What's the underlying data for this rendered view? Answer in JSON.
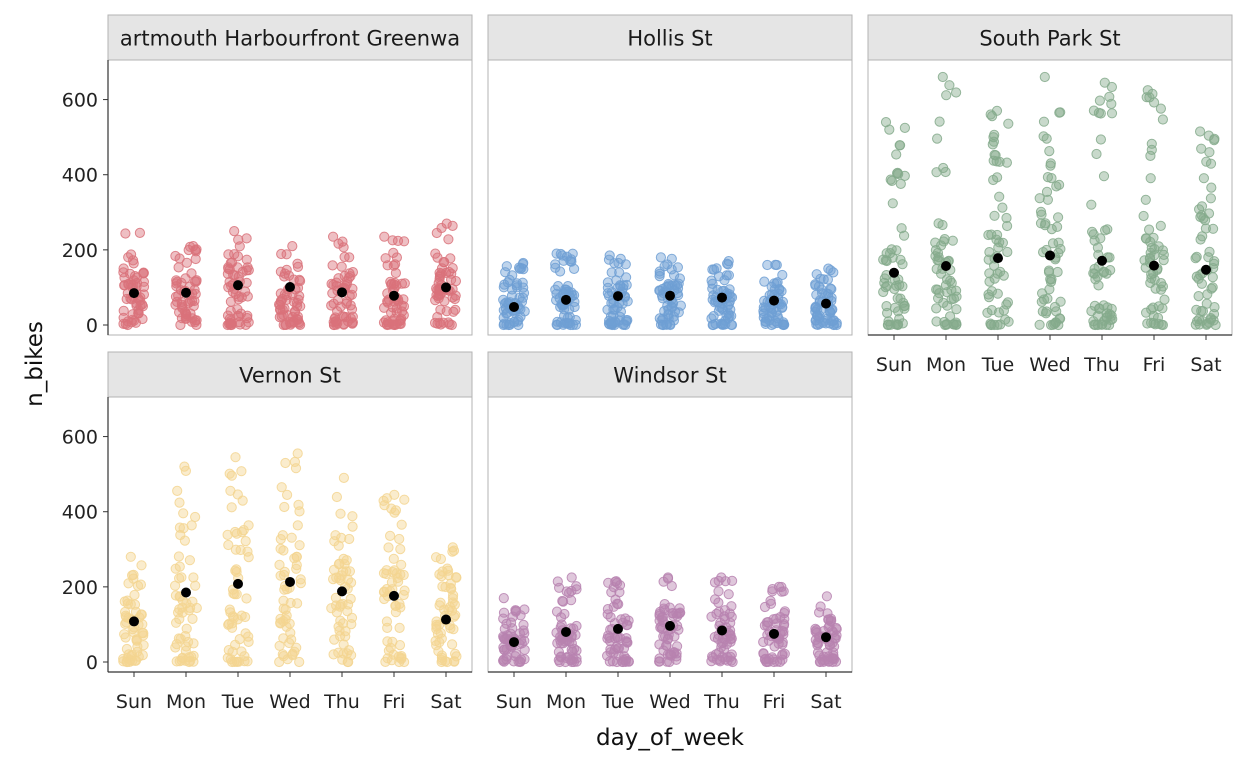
{
  "chart_data": {
    "type": "scatter",
    "subtype": "faceted jittered strip plot with daily means",
    "xlabel": "day_of_week",
    "ylabel": "n_bikes",
    "ylim": [
      0,
      700
    ],
    "yticks": [
      0,
      200,
      400,
      600
    ],
    "categories": [
      "Sun",
      "Mon",
      "Tue",
      "Wed",
      "Thu",
      "Fri",
      "Sat"
    ],
    "mean_color": "#000000",
    "facets": [
      {
        "name": "Dartmouth Harbourfront Greenway",
        "name_shown": "artmouth Harbourfront Greenwa",
        "color": "#d9727a",
        "means": [
          85,
          86,
          106,
          101,
          87,
          78,
          100
        ],
        "maxima": [
          245,
          210,
          250,
          210,
          235,
          235,
          270
        ],
        "minima": [
          0,
          0,
          0,
          0,
          0,
          0,
          0
        ]
      },
      {
        "name": "Hollis St",
        "name_shown": "Hollis St",
        "color": "#6f9fd4",
        "means": [
          48,
          67,
          77,
          78,
          73,
          65,
          57
        ],
        "maxima": [
          165,
          190,
          185,
          180,
          170,
          160,
          150
        ],
        "minima": [
          0,
          0,
          0,
          0,
          0,
          0,
          0
        ]
      },
      {
        "name": "South Park St",
        "name_shown": "South Park St",
        "color": "#85aa8c",
        "means": [
          139,
          157,
          178,
          185,
          171,
          158,
          147
        ],
        "maxima": [
          540,
          660,
          570,
          660,
          645,
          625,
          515
        ],
        "minima": [
          0,
          0,
          0,
          0,
          0,
          0,
          0
        ]
      },
      {
        "name": "Vernon St",
        "name_shown": "Vernon St",
        "color": "#f3d591",
        "means": [
          108,
          185,
          208,
          213,
          188,
          176,
          113
        ],
        "maxima": [
          280,
          520,
          545,
          555,
          490,
          445,
          305
        ],
        "minima": [
          0,
          0,
          0,
          0,
          0,
          0,
          0
        ]
      },
      {
        "name": "Windsor St",
        "name_shown": "Windsor St",
        "color": "#b782b0",
        "means": [
          53,
          80,
          88,
          96,
          84,
          75,
          66
        ],
        "maxima": [
          170,
          225,
          215,
          225,
          225,
          200,
          175
        ],
        "minima": [
          0,
          0,
          0,
          0,
          0,
          0,
          0
        ]
      }
    ]
  }
}
